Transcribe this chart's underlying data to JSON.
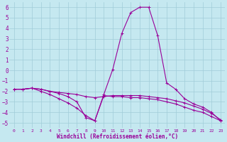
{
  "xlabel": "Windchill (Refroidissement éolien,°C)",
  "bg_color": "#c5e8f0",
  "grid_color": "#a0ccd8",
  "line_color": "#990099",
  "xlim": [
    -0.5,
    23.5
  ],
  "ylim": [
    -5.5,
    6.5
  ],
  "yticks": [
    -5,
    -4,
    -3,
    -2,
    -1,
    0,
    1,
    2,
    3,
    4,
    5,
    6
  ],
  "xticks": [
    0,
    1,
    2,
    3,
    4,
    5,
    6,
    7,
    8,
    9,
    10,
    11,
    12,
    13,
    14,
    15,
    16,
    17,
    18,
    19,
    20,
    21,
    22,
    23
  ],
  "series": [
    {
      "x": [
        0,
        1,
        2,
        3,
        4,
        5,
        6,
        7,
        8,
        9,
        10,
        11,
        12,
        13,
        14,
        15,
        16,
        17,
        18,
        19,
        20,
        21,
        22,
        23
      ],
      "y": [
        -1.8,
        -1.8,
        -1.7,
        -1.8,
        -2.0,
        -2.2,
        -2.5,
        -3.0,
        -4.5,
        -4.8,
        -2.3,
        0.1,
        3.5,
        5.5,
        6.0,
        6.0,
        3.3,
        -1.2,
        -1.8,
        -2.7,
        -3.2,
        -3.5,
        -4.0,
        -4.8
      ]
    },
    {
      "x": [
        0,
        1,
        2,
        3,
        4,
        5,
        6,
        7,
        8,
        9,
        10,
        11,
        12,
        13,
        14,
        15,
        16,
        17,
        18,
        19,
        20,
        21,
        22,
        23
      ],
      "y": [
        -1.8,
        -1.8,
        -1.7,
        -1.8,
        -2.0,
        -2.1,
        -2.2,
        -2.3,
        -2.5,
        -2.6,
        -2.5,
        -2.4,
        -2.4,
        -2.4,
        -2.4,
        -2.5,
        -2.6,
        -2.7,
        -2.9,
        -3.1,
        -3.4,
        -3.7,
        -4.1,
        -4.7
      ]
    },
    {
      "x": [
        0,
        1,
        2,
        3,
        4,
        5,
        6,
        7,
        8,
        9,
        10,
        11,
        12,
        13,
        14,
        15,
        16,
        17,
        18,
        19,
        20,
        21,
        22,
        23
      ],
      "y": [
        -1.8,
        -1.8,
        -1.7,
        -2.0,
        -2.3,
        -2.7,
        -3.1,
        -3.6,
        -4.3,
        -4.8,
        -2.4,
        -2.5,
        -2.5,
        -2.6,
        -2.6,
        -2.7,
        -2.8,
        -3.0,
        -3.2,
        -3.5,
        -3.8,
        -4.0,
        -4.4,
        -4.8
      ]
    }
  ]
}
